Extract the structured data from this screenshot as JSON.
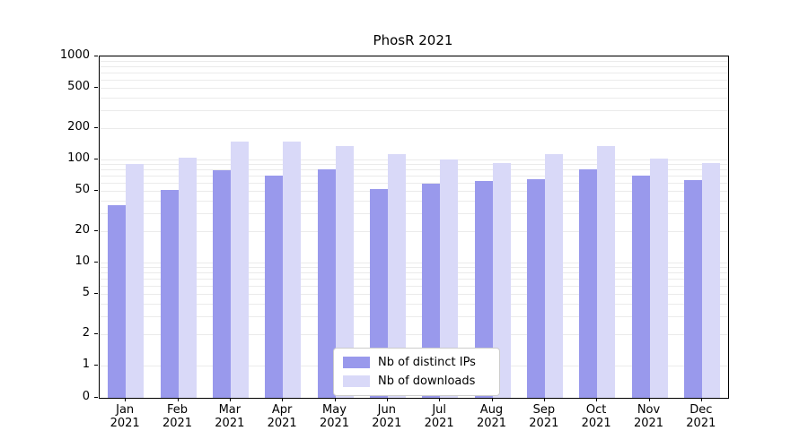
{
  "title": "PhosR 2021",
  "chart_data": {
    "type": "bar",
    "title": "PhosR 2021",
    "scale": "log",
    "grid": "on",
    "legend_position": "bottom-center-inside",
    "categories": [
      "Jan",
      "Feb",
      "Mar",
      "Apr",
      "May",
      "Jun",
      "Jul",
      "Aug",
      "Sep",
      "Oct",
      "Nov",
      "Dec"
    ],
    "year_label": "2021",
    "y_ticks": [
      0,
      1,
      2,
      5,
      10,
      20,
      50,
      100,
      200,
      500,
      1000
    ],
    "ylim": [
      0,
      1000
    ],
    "series": [
      {
        "name": "Nb of distinct IPs",
        "color": "#9999ec",
        "values": [
          36,
          51,
          78,
          70,
          80,
          52,
          58,
          62,
          65,
          80,
          70,
          63
        ]
      },
      {
        "name": "Nb of downloads",
        "color": "#d9d9f8",
        "values": [
          90,
          105,
          150,
          150,
          135,
          112,
          100,
          92,
          112,
          135,
          102,
          93
        ]
      }
    ]
  }
}
